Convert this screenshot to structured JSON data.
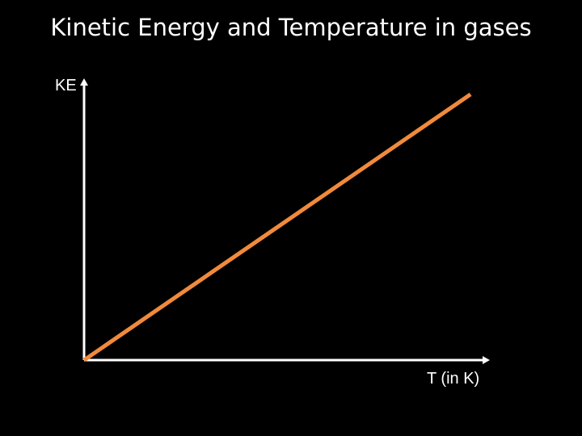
{
  "slide": {
    "title": "Kinetic Energy and Temperature in gases",
    "background": "#000000"
  },
  "chart_data": {
    "type": "line",
    "title": "Kinetic Energy and Temperature in gases",
    "xlabel": "T (in K)",
    "ylabel": "KE",
    "grid": false,
    "legend": "none",
    "axis_color": "#ffffff",
    "series": [
      {
        "color": "#f08a3c",
        "x": [
          0,
          1
        ],
        "y": [
          0,
          1
        ]
      }
    ],
    "xlim": [
      0,
      1.05
    ],
    "ylim": [
      0,
      1.06
    ]
  }
}
